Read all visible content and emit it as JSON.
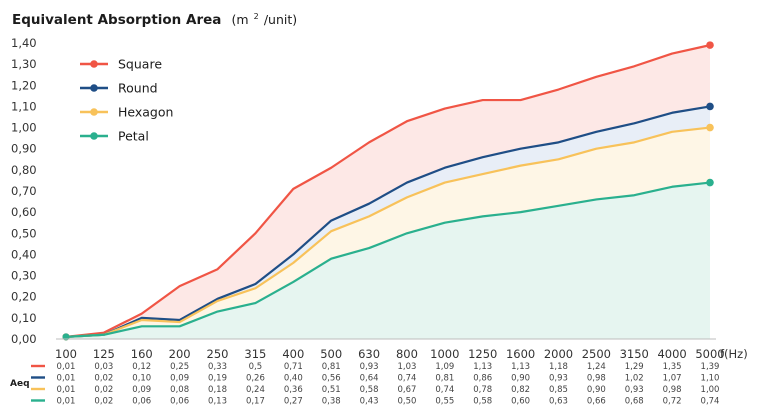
{
  "chart_data": {
    "type": "area",
    "title": "Equivalent Absorption Area",
    "title_unit_prefix": "(m",
    "title_unit_sup": "2",
    "title_unit_suffix": "/unit)",
    "xlabel": "f(Hz)",
    "ylabel": "",
    "table_label": "Aeq",
    "ylim": [
      0,
      1.4
    ],
    "y_ticks": [
      "0,00",
      "0,10",
      "0,20",
      "0,30",
      "0,40",
      "0,50",
      "0,60",
      "0,70",
      "0,80",
      "0,90",
      "1,00",
      "1,10",
      "1,20",
      "1,30",
      "1,40"
    ],
    "categories": [
      "100",
      "125",
      "160",
      "200",
      "250",
      "315",
      "400",
      "500",
      "630",
      "800",
      "1000",
      "1250",
      "1600",
      "2000",
      "2500",
      "3150",
      "4000",
      "5000"
    ],
    "legend_position": "top-left",
    "grid": false,
    "series": [
      {
        "name": "Square",
        "color": "#f05545",
        "fill": "#fde8e6",
        "values": [
          0.01,
          0.03,
          0.12,
          0.25,
          0.33,
          0.5,
          0.71,
          0.81,
          0.93,
          1.03,
          1.09,
          1.13,
          1.13,
          1.18,
          1.24,
          1.29,
          1.35,
          1.39
        ],
        "labels": [
          "0,01",
          "0,03",
          "0,12",
          "0,25",
          "0,33",
          "0,5",
          "0,71",
          "0,81",
          "0,93",
          "1,03",
          "1,09",
          "1,13",
          "1,13",
          "1,18",
          "1,24",
          "1,29",
          "1,35",
          "1,39"
        ]
      },
      {
        "name": "Round",
        "color": "#1f4e86",
        "fill": "#e8eef7",
        "values": [
          0.01,
          0.02,
          0.1,
          0.09,
          0.19,
          0.26,
          0.4,
          0.56,
          0.64,
          0.74,
          0.81,
          0.86,
          0.9,
          0.93,
          0.98,
          1.02,
          1.07,
          1.1
        ],
        "labels": [
          "0,01",
          "0,02",
          "0,10",
          "0,09",
          "0,19",
          "0,26",
          "0,40",
          "0,56",
          "0,64",
          "0,74",
          "0,81",
          "0,86",
          "0,90",
          "0,93",
          "0,98",
          "1,02",
          "1,07",
          "1,10"
        ]
      },
      {
        "name": "Hexagon",
        "color": "#f8c25a",
        "fill": "#fef6e6",
        "values": [
          0.01,
          0.02,
          0.09,
          0.08,
          0.18,
          0.24,
          0.36,
          0.51,
          0.58,
          0.67,
          0.74,
          0.78,
          0.82,
          0.85,
          0.9,
          0.93,
          0.98,
          1.0
        ],
        "labels": [
          "0,01",
          "0,02",
          "0,09",
          "0,08",
          "0,18",
          "0,24",
          "0,36",
          "0,51",
          "0,58",
          "0,67",
          "0,74",
          "0,78",
          "0,82",
          "0,85",
          "0,90",
          "0,93",
          "0,98",
          "1,00"
        ]
      },
      {
        "name": "Petal",
        "color": "#2ab08e",
        "fill": "#e6f5f0",
        "values": [
          0.01,
          0.02,
          0.06,
          0.06,
          0.13,
          0.17,
          0.27,
          0.38,
          0.43,
          0.5,
          0.55,
          0.58,
          0.6,
          0.63,
          0.66,
          0.68,
          0.72,
          0.74
        ],
        "labels": [
          "0,01",
          "0,02",
          "0,06",
          "0,06",
          "0,13",
          "0,17",
          "0,27",
          "0,38",
          "0,43",
          "0,50",
          "0,55",
          "0,58",
          "0,60",
          "0,63",
          "0,66",
          "0,68",
          "0,72",
          "0,74"
        ]
      }
    ]
  }
}
